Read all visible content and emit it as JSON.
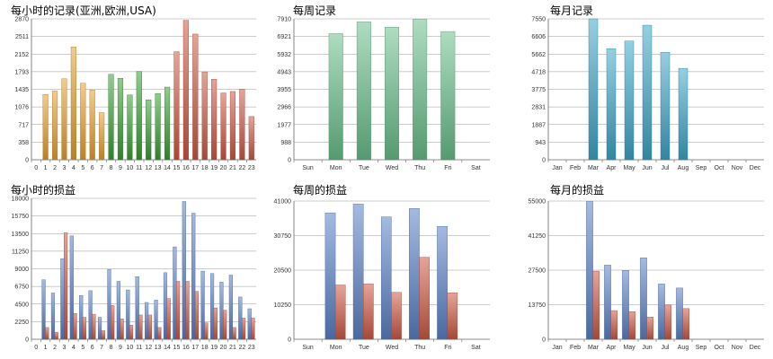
{
  "chart_data": [
    {
      "id": "hourly-records",
      "type": "bar",
      "title": "每小时的记录(亚洲,欧洲,USA)",
      "categories": [
        "0",
        "1",
        "2",
        "3",
        "4",
        "5",
        "6",
        "7",
        "8",
        "9",
        "10",
        "11",
        "12",
        "13",
        "14",
        "15",
        "16",
        "17",
        "18",
        "19",
        "20",
        "21",
        "22",
        "23"
      ],
      "yticks": [
        "0",
        "358",
        "717",
        "1076",
        "1435",
        "1793",
        "2152",
        "2511",
        "2870"
      ],
      "ylim": [
        0,
        2870
      ],
      "series": [
        {
          "values": [
            0,
            1330,
            1400,
            1650,
            2300,
            1560,
            1420,
            960,
            0,
            0,
            0,
            0,
            0,
            0,
            0,
            0,
            0,
            0,
            0,
            0,
            0,
            0,
            0,
            0
          ],
          "color": "#e8a030"
        },
        {
          "values": [
            0,
            0,
            0,
            0,
            0,
            0,
            0,
            0,
            1740,
            1660,
            1320,
            1800,
            1220,
            1350,
            1480,
            0,
            0,
            0,
            0,
            0,
            0,
            0,
            0,
            0
          ],
          "color": "#3aa035"
        },
        {
          "values": [
            0,
            0,
            0,
            0,
            0,
            0,
            0,
            0,
            0,
            0,
            0,
            0,
            0,
            0,
            0,
            2200,
            2840,
            2560,
            1790,
            1640,
            1360,
            1390,
            1440,
            880
          ],
          "color": "#d05a45"
        }
      ]
    },
    {
      "id": "weekly-records",
      "type": "bar",
      "title": "每周记录",
      "categories": [
        "Sun",
        "Mon",
        "Tue",
        "Wed",
        "Thu",
        "Fri",
        "Sat"
      ],
      "yticks": [
        "0",
        "988",
        "1977",
        "2966",
        "3955",
        "4943",
        "5932",
        "6921",
        "7910"
      ],
      "ylim": [
        0,
        7910
      ],
      "series": [
        {
          "values": [
            0,
            7080,
            7740,
            7440,
            7880,
            7200,
            0
          ],
          "color": "#6cc08c"
        }
      ]
    },
    {
      "id": "monthly-records",
      "type": "bar",
      "title": "每月记录",
      "categories": [
        "Jan",
        "Feb",
        "Mar",
        "Apr",
        "May",
        "Jun",
        "Jul",
        "Aug",
        "Sep",
        "Oct",
        "Nov",
        "Dec"
      ],
      "yticks": [
        "0",
        "943",
        "1887",
        "2831",
        "3775",
        "4718",
        "5662",
        "6606",
        "7550"
      ],
      "ylim": [
        0,
        7550
      ],
      "series": [
        {
          "values": [
            0,
            0,
            7550,
            5950,
            6360,
            7210,
            5760,
            4900,
            0,
            0,
            0,
            0
          ],
          "color": "#3fa8c8"
        }
      ]
    },
    {
      "id": "hourly-pnl",
      "type": "bar",
      "title": "每小时的损益",
      "categories": [
        "0",
        "1",
        "2",
        "3",
        "4",
        "5",
        "6",
        "7",
        "8",
        "9",
        "10",
        "11",
        "12",
        "13",
        "14",
        "15",
        "16",
        "17",
        "18",
        "19",
        "20",
        "21",
        "22",
        "23"
      ],
      "yticks": [
        "0",
        "2250",
        "4500",
        "6750",
        "9000",
        "11250",
        "13500",
        "15750",
        "18000"
      ],
      "ylim": [
        0,
        18000
      ],
      "series": [
        {
          "values": [
            0,
            7600,
            5900,
            10300,
            13200,
            5600,
            6200,
            2800,
            8900,
            7400,
            6300,
            8000,
            4700,
            5000,
            8500,
            11800,
            17600,
            16100,
            8700,
            8400,
            7300,
            8200,
            5400,
            3900
          ],
          "color": "#5c82c8"
        },
        {
          "values": [
            0,
            1500,
            900,
            13600,
            3300,
            2800,
            3200,
            1100,
            4300,
            2600,
            1800,
            3100,
            3100,
            1500,
            5200,
            7400,
            7400,
            6100,
            2100,
            4000,
            3700,
            1500,
            2700,
            2700
          ],
          "color": "#d05a45"
        }
      ]
    },
    {
      "id": "weekly-pnl",
      "type": "bar",
      "title": "每周的损益",
      "categories": [
        "Sun",
        "Mon",
        "Tue",
        "Wed",
        "Thu",
        "Fri",
        "Sat"
      ],
      "yticks": [
        "0",
        "10250",
        "20500",
        "30750",
        "41000"
      ],
      "ylim": [
        0,
        41000
      ],
      "series": [
        {
          "values": [
            0,
            37500,
            40100,
            36300,
            38800,
            33500,
            0
          ],
          "color": "#5c82c8"
        },
        {
          "values": [
            0,
            16100,
            16400,
            13900,
            24300,
            13800,
            0
          ],
          "color": "#d05a45"
        }
      ]
    },
    {
      "id": "monthly-pnl",
      "type": "bar",
      "title": "每月的损益",
      "categories": [
        "Jan",
        "Feb",
        "Mar",
        "Apr",
        "May",
        "Jun",
        "Jul",
        "Aug",
        "Sep",
        "Oct",
        "Nov",
        "Dec"
      ],
      "yticks": [
        "0",
        "13750",
        "27500",
        "41250",
        "55000"
      ],
      "ylim": [
        0,
        55000
      ],
      "series": [
        {
          "values": [
            0,
            0,
            54800,
            29500,
            27400,
            32400,
            22000,
            20400,
            0,
            0,
            0,
            0
          ],
          "color": "#5c82c8"
        },
        {
          "values": [
            0,
            0,
            27100,
            11400,
            11000,
            8800,
            13600,
            12200,
            0,
            0,
            0,
            0
          ],
          "color": "#d05a45"
        }
      ]
    }
  ]
}
